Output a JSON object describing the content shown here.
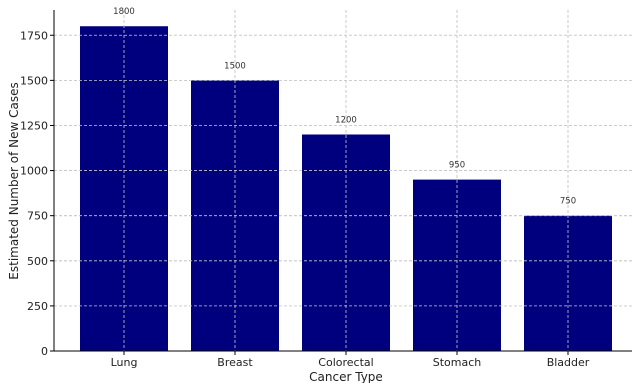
{
  "chart_data": {
    "type": "bar",
    "categories": [
      "Lung",
      "Breast",
      "Colorectal",
      "Stomach",
      "Bladder"
    ],
    "values": [
      1800,
      1500,
      1200,
      950,
      750
    ],
    "data_labels": [
      "1800",
      "1500",
      "1200",
      "950",
      "750"
    ],
    "title": "",
    "xlabel": "Cancer Type",
    "ylabel": "Estimated Number of New Cases",
    "ylim": [
      0,
      1890
    ],
    "yticks": [
      0,
      250,
      500,
      750,
      1000,
      1250,
      1500,
      1750
    ],
    "ytick_labels": [
      "0",
      "250",
      "500",
      "750",
      "1000",
      "1250",
      "1500",
      "1750"
    ],
    "grid": true,
    "legend": "none",
    "bar_color": "#00007f"
  }
}
